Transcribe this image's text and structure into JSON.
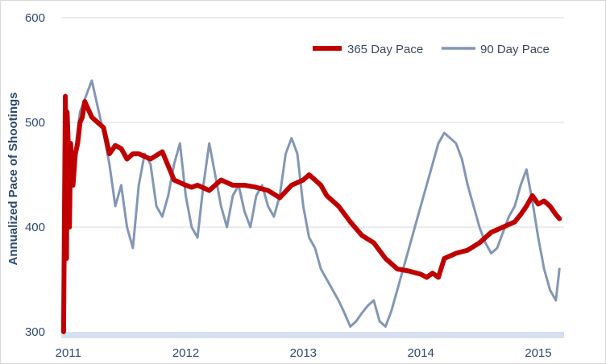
{
  "chart_data": {
    "type": "line",
    "title": "",
    "xlabel": "",
    "ylabel": "Annualized Pace of Shootings",
    "ylim": [
      300,
      600
    ],
    "yticks": [
      300,
      400,
      500,
      600
    ],
    "xlim": [
      2010.94,
      2015.22
    ],
    "xticks": [
      {
        "label": "2011",
        "value": 2011.0
      },
      {
        "label": "2012",
        "value": 2012.0
      },
      {
        "label": "2013",
        "value": 2013.0
      },
      {
        "label": "2014",
        "value": 2014.0
      },
      {
        "label": "2015",
        "value": 2015.0
      }
    ],
    "grid": "horizontal",
    "legend_position": "top-right",
    "series": [
      {
        "name": "365 Day Pace",
        "color": "#c00000",
        "x": [
          2010.96,
          2010.975,
          2010.985,
          2010.99,
          2011.0,
          2011.01,
          2011.02,
          2011.04,
          2011.06,
          2011.08,
          2011.1,
          2011.12,
          2011.14,
          2011.16,
          2011.2,
          2011.25,
          2011.3,
          2011.35,
          2011.4,
          2011.45,
          2011.5,
          2011.55,
          2011.6,
          2011.7,
          2011.8,
          2011.9,
          2012.0,
          2012.05,
          2012.1,
          2012.2,
          2012.3,
          2012.4,
          2012.5,
          2012.6,
          2012.7,
          2012.8,
          2012.9,
          2013.0,
          2013.05,
          2013.1,
          2013.15,
          2013.2,
          2013.25,
          2013.3,
          2013.4,
          2013.5,
          2013.6,
          2013.7,
          2013.8,
          2013.9,
          2014.0,
          2014.05,
          2014.1,
          2014.15,
          2014.2,
          2014.3,
          2014.4,
          2014.5,
          2014.6,
          2014.7,
          2014.8,
          2014.85,
          2014.9,
          2014.95,
          2015.0,
          2015.05,
          2015.1,
          2015.15,
          2015.18
        ],
        "values": [
          300,
          525,
          370,
          510,
          480,
          400,
          480,
          440,
          470,
          480,
          500,
          505,
          520,
          515,
          505,
          500,
          495,
          470,
          478,
          475,
          465,
          470,
          470,
          465,
          472,
          445,
          440,
          438,
          440,
          435,
          445,
          440,
          440,
          438,
          435,
          428,
          440,
          445,
          450,
          445,
          440,
          430,
          425,
          420,
          405,
          392,
          385,
          370,
          360,
          358,
          355,
          352,
          356,
          352,
          370,
          375,
          378,
          385,
          395,
          400,
          405,
          412,
          420,
          430,
          422,
          425,
          420,
          412,
          408
        ]
      },
      {
        "name": "90 Day Pace",
        "color": "#8397b5",
        "x": [
          2011.0,
          2011.05,
          2011.1,
          2011.15,
          2011.2,
          2011.25,
          2011.3,
          2011.35,
          2011.4,
          2011.45,
          2011.5,
          2011.55,
          2011.6,
          2011.65,
          2011.7,
          2011.75,
          2011.8,
          2011.85,
          2011.9,
          2011.95,
          2012.0,
          2012.05,
          2012.1,
          2012.15,
          2012.2,
          2012.25,
          2012.3,
          2012.35,
          2012.4,
          2012.45,
          2012.5,
          2012.55,
          2012.6,
          2012.65,
          2012.7,
          2012.75,
          2012.8,
          2012.85,
          2012.9,
          2012.95,
          2013.0,
          2013.05,
          2013.1,
          2013.15,
          2013.2,
          2013.25,
          2013.3,
          2013.35,
          2013.4,
          2013.45,
          2013.5,
          2013.55,
          2013.6,
          2013.65,
          2013.7,
          2013.75,
          2013.8,
          2013.85,
          2013.9,
          2013.95,
          2014.0,
          2014.05,
          2014.1,
          2014.15,
          2014.2,
          2014.25,
          2014.3,
          2014.35,
          2014.4,
          2014.45,
          2014.5,
          2014.55,
          2014.6,
          2014.65,
          2014.7,
          2014.75,
          2014.8,
          2014.85,
          2014.9,
          2014.95,
          2015.0,
          2015.05,
          2015.1,
          2015.15,
          2015.18
        ],
        "values": [
          470,
          465,
          510,
          525,
          540,
          515,
          490,
          460,
          420,
          440,
          400,
          380,
          440,
          470,
          460,
          420,
          410,
          430,
          460,
          480,
          430,
          400,
          390,
          440,
          480,
          450,
          420,
          400,
          430,
          440,
          415,
          400,
          430,
          440,
          420,
          410,
          430,
          470,
          485,
          470,
          420,
          390,
          380,
          360,
          350,
          340,
          330,
          318,
          305,
          310,
          318,
          325,
          330,
          310,
          305,
          320,
          340,
          360,
          380,
          400,
          420,
          440,
          460,
          480,
          490,
          485,
          480,
          465,
          440,
          420,
          400,
          385,
          375,
          380,
          395,
          410,
          420,
          440,
          455,
          425,
          390,
          360,
          340,
          330,
          360
        ]
      }
    ]
  }
}
